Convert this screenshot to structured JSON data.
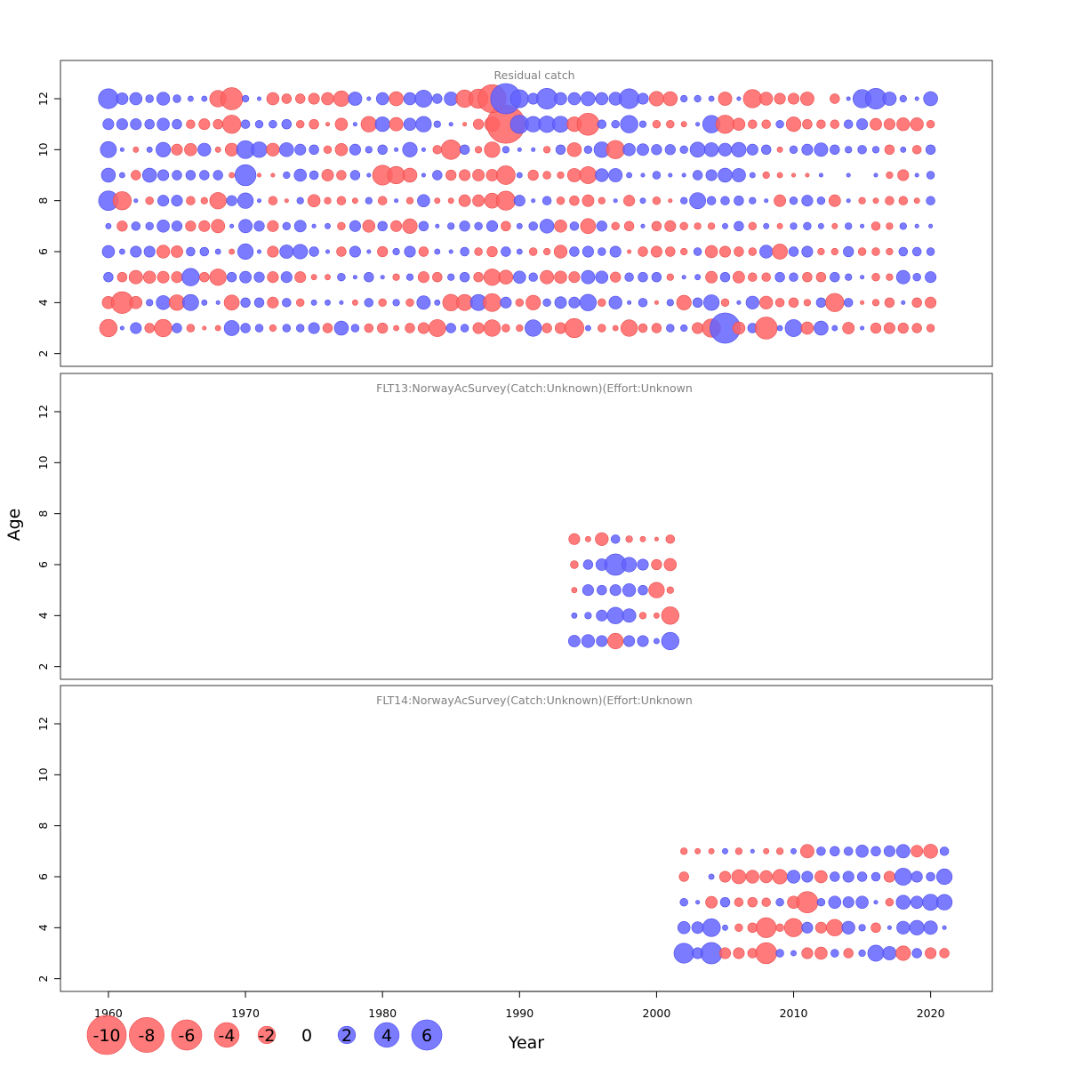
{
  "chart_data": {
    "type": "scatter",
    "subtype": "bubble-residuals",
    "xlabel": "Year",
    "ylabel": "Age",
    "xlim": [
      1956.5,
      2024.5
    ],
    "ylim": [
      1.5,
      13.5
    ],
    "x_ticks": [
      1960,
      1970,
      1980,
      1990,
      2000,
      2010,
      2020
    ],
    "y_ticks": [
      2,
      4,
      6,
      8,
      10,
      12
    ],
    "colors": {
      "negative": "#ff6464",
      "positive": "#6464ff",
      "frame": "#333333",
      "title": "#808080"
    },
    "legend": {
      "position": "bottom-left",
      "values": [
        -10,
        -8,
        -6,
        -4,
        -2,
        0,
        2,
        4,
        6
      ],
      "labels": [
        "-10",
        "-8",
        "-6",
        "-4",
        "-2",
        "0",
        "2",
        "4",
        "6"
      ]
    },
    "panels": [
      {
        "title": "Residual catch",
        "years": [
          1960,
          2021
        ],
        "ages": [
          3,
          12
        ],
        "residuals": {
          "12": [
            2.6,
            0.9,
            1.0,
            0.4,
            1.1,
            0.4,
            0.2,
            0.2,
            -1.8,
            -3.2,
            0.3,
            0.1,
            -1.0,
            -0.6,
            -0.6,
            -0.8,
            -1.0,
            -1.6,
            1.2,
            0.1,
            1.0,
            -1.3,
            1.0,
            1.9,
            0.6,
            1.2,
            -2.0,
            -2.4,
            -5.2,
            6.0,
            2.1,
            0.8,
            2.8,
            1.0,
            1.0,
            1.3,
            1.0,
            1.1,
            2.6,
            0.8,
            -1.4,
            -1.3,
            0.3,
            0.3,
            0.2,
            -1.2,
            0.1,
            -2.2,
            -1.1,
            -0.8,
            -0.8,
            -1.2,
            0.0,
            -0.6,
            0.1,
            2.2,
            2.8,
            1.2,
            0.3,
            0.1,
            1.3
          ],
          "11": [
            0.8,
            0.8,
            0.8,
            0.6,
            1.0,
            0.6,
            -0.5,
            -0.8,
            -0.6,
            -2.2,
            0.5,
            0.4,
            0.4,
            0.6,
            -0.4,
            -0.6,
            -0.1,
            -1.0,
            0.1,
            -1.6,
            1.4,
            -1.2,
            1.0,
            1.6,
            0.3,
            0.1,
            -0.1,
            -0.7,
            -1.5,
            -9.5,
            2.2,
            1.6,
            1.8,
            1.7,
            -1.4,
            -3.2,
            0.5,
            0.4,
            2.0,
            0.3,
            -0.4,
            -0.4,
            -0.2,
            0.1,
            2.0,
            -2.2,
            -1.0,
            -0.5,
            -0.5,
            0.4,
            -1.4,
            -0.6,
            -0.5,
            -0.5,
            0.5,
            0.8,
            -0.9,
            -0.8,
            -1.1,
            -1.1,
            -0.4
          ],
          "10": [
            1.7,
            0.1,
            -0.2,
            0.2,
            1.4,
            -0.8,
            -1.0,
            1.1,
            -0.2,
            -1.1,
            2.1,
            1.6,
            -1.1,
            1.3,
            0.8,
            0.6,
            -0.4,
            -1.0,
            0.8,
            0.3,
            0.6,
            0.1,
            1.4,
            0.1,
            -0.5,
            -2.5,
            0.6,
            -0.3,
            -1.6,
            0.3,
            0.1,
            0.1,
            -0.3,
            0.6,
            -1.3,
            0.4,
            1.6,
            -2.2,
            1.0,
            0.9,
            0.7,
            0.7,
            0.4,
            1.5,
            1.3,
            1.1,
            1.4,
            0.8,
            0.6,
            -0.2,
            0.4,
            0.8,
            1.2,
            0.6,
            0.3,
            0.5,
            0.3,
            -0.6,
            0.2,
            -0.5,
            0.6
          ],
          "9": [
            1.3,
            0.2,
            -0.6,
            1.3,
            0.8,
            0.6,
            0.6,
            0.6,
            0.6,
            -0.2,
            2.9,
            -0.1,
            -0.1,
            0.3,
            1.0,
            0.5,
            -0.9,
            -0.6,
            0.6,
            0.1,
            -2.6,
            -2.0,
            -1.3,
            0.1,
            0.6,
            -0.7,
            -0.8,
            -0.9,
            -0.9,
            -2.3,
            0.2,
            -0.7,
            -0.4,
            -0.3,
            -1.2,
            -1.9,
            1.1,
            1.2,
            0.2,
            0.1,
            0.4,
            0.1,
            0.1,
            0.6,
            0.8,
            1.3,
            1.2,
            0.2,
            -0.3,
            -0.2,
            -0.1,
            -0.1,
            0.1,
            0.0,
            0.1,
            0.0,
            0.1,
            -0.3,
            -0.8,
            0.1,
            0.4
          ],
          "8": [
            2.5,
            -2.2,
            0.1,
            -0.4,
            0.8,
            0.8,
            -0.5,
            -0.3,
            -1.8,
            0.7,
            1.6,
            0.1,
            -0.5,
            -0.1,
            0.3,
            -1.0,
            -0.3,
            -0.5,
            -0.2,
            0.3,
            -0.5,
            0.1,
            -0.3,
            1.0,
            -0.2,
            -0.2,
            -0.9,
            -0.9,
            -1.5,
            -2.4,
            0.8,
            0.1,
            0.5,
            -0.4,
            -0.6,
            -0.9,
            -0.3,
            0.1,
            -0.8,
            0.2,
            -0.4,
            -0.1,
            0.3,
            1.7,
            0.5,
            0.5,
            0.6,
            0.3,
            0.1,
            -0.9,
            0.4,
            0.8,
            0.4,
            -0.9,
            0.1,
            -0.3,
            -0.2,
            -0.5,
            -0.5,
            -0.2,
            0.5
          ],
          "7": [
            0.2,
            -0.7,
            0.5,
            0.4,
            1.0,
            0.7,
            -0.7,
            -0.8,
            -1.2,
            0.1,
            1.2,
            0.7,
            -0.8,
            0.4,
            0.9,
            0.1,
            0.2,
            -0.4,
            0.8,
            -1.0,
            0.6,
            -0.8,
            -1.4,
            0.6,
            0.1,
            0.3,
            0.7,
            0.4,
            0.8,
            -0.6,
            0.2,
            0.5,
            1.3,
            -1.0,
            0.5,
            -1.5,
            0.7,
            -0.4,
            -0.6,
            0.1,
            -0.6,
            -0.8,
            -0.4,
            -0.3,
            -0.3,
            0.2,
            0.6,
            -0.4,
            0.2,
            -0.2,
            0.3,
            0.4,
            0.2,
            -0.2,
            0.3,
            0.1,
            -0.5,
            -0.3,
            0.3,
            0.1,
            0.1
          ],
          "6": [
            1.0,
            0.2,
            0.8,
            0.8,
            -1.1,
            -0.9,
            0.5,
            0.5,
            0.2,
            -0.2,
            1.6,
            0.1,
            -0.8,
            1.2,
            1.4,
            0.6,
            0.1,
            -0.6,
            0.8,
            0.1,
            -0.7,
            0.3,
            0.8,
            -0.6,
            0.2,
            0.1,
            0.5,
            -0.4,
            -0.7,
            0.6,
            0.2,
            -0.4,
            -0.3,
            -1.1,
            0.6,
            0.8,
            0.4,
            0.8,
            -0.1,
            -0.6,
            -0.8,
            -0.6,
            -0.3,
            0.4,
            -1.0,
            -0.8,
            -0.6,
            -0.4,
            1.1,
            -1.5,
            0.6,
            0.8,
            -0.3,
            -0.3,
            0.7,
            -0.4,
            -0.4,
            -0.3,
            0.5,
            0.5,
            0.4
          ],
          "5": [
            0.6,
            -0.6,
            -1.2,
            -1.0,
            -0.9,
            -0.8,
            2.0,
            -0.6,
            -1.8,
            0.6,
            0.9,
            0.7,
            -0.8,
            0.8,
            -0.8,
            -0.2,
            -0.2,
            0.4,
            0.1,
            0.6,
            0.1,
            -0.3,
            0.3,
            -0.8,
            -0.6,
            0.3,
            0.6,
            -0.6,
            -1.8,
            -1.3,
            1.0,
            0.5,
            -1.2,
            -1.0,
            -0.8,
            1.2,
            1.0,
            -0.7,
            0.5,
            0.6,
            0.6,
            -0.3,
            0.1,
            0.2,
            -0.9,
            0.6,
            -0.9,
            -0.5,
            -0.5,
            0.6,
            0.5,
            -0.6,
            -0.6,
            0.6,
            0.3,
            0.1,
            -0.4,
            -0.3,
            1.2,
            0.4,
            0.8
          ],
          "4": [
            -1.0,
            -3.1,
            -1.0,
            0.3,
            1.3,
            -1.6,
            1.7,
            0.2,
            0.1,
            -1.5,
            0.6,
            0.6,
            -0.8,
            0.5,
            -0.4,
            0.2,
            0.2,
            0.1,
            -0.2,
            0.5,
            -0.4,
            0.3,
            -0.4,
            1.2,
            0.2,
            -1.8,
            -1.7,
            1.7,
            -2.1,
            0.8,
            -0.4,
            -1.4,
            0.4,
            0.9,
            0.8,
            1.8,
            -0.4,
            1.1,
            0.1,
            0.5,
            -0.1,
            0.3,
            -1.4,
            0.6,
            1.6,
            -0.4,
            0.1,
            1.1,
            -1.1,
            -0.5,
            -0.6,
            -0.3,
            0.6,
            -2.2,
            0.5,
            -0.1,
            -0.3,
            -0.6,
            0.1,
            -0.6,
            -0.8
          ],
          "3": [
            -2.0,
            0.1,
            0.8,
            -0.6,
            -2.0,
            0.6,
            -0.4,
            -0.1,
            -0.2,
            1.5,
            0.6,
            0.4,
            -0.3,
            0.4,
            0.4,
            0.8,
            -0.6,
            1.3,
            0.4,
            -0.5,
            -0.7,
            -0.2,
            -0.6,
            -0.8,
            -1.9,
            0.6,
            0.4,
            -0.8,
            -1.8,
            -0.4,
            -0.3,
            1.8,
            -0.6,
            -0.8,
            -2.4,
            0.2,
            -0.4,
            -0.2,
            -1.8,
            -0.5,
            -0.6,
            0.4,
            0.3,
            -0.8,
            -2.2,
            6.0,
            -1.0,
            0.6,
            -3.2,
            0.2,
            1.9,
            -1.0,
            1.3,
            0.2,
            -0.9,
            0.1,
            -0.7,
            -0.8,
            -0.7,
            -0.6,
            -0.4
          ]
        }
      },
      {
        "title": "FLT13:NorwayAcSurvey(Catch:Unknown)(Effort:Unknown",
        "years": [
          1994,
          2001
        ],
        "ages": [
          3,
          7
        ],
        "residuals": {
          "7": [
            -0.8,
            -0.2,
            -1.1,
            0.5,
            -0.3,
            -0.2,
            -0.1,
            -0.5
          ],
          "6": [
            -0.4,
            0.6,
            0.9,
            3.0,
            1.4,
            0.8,
            -0.7,
            -1.0
          ],
          "5": [
            -0.2,
            0.8,
            0.6,
            0.8,
            1.1,
            0.6,
            -1.6,
            -0.3
          ],
          "4": [
            0.2,
            0.3,
            0.8,
            1.8,
            1.2,
            -0.3,
            -0.2,
            -2.0
          ],
          "3": [
            0.9,
            1.1,
            0.8,
            -1.6,
            0.8,
            0.8,
            0.2,
            2.0
          ]
        }
      },
      {
        "title": "FLT14:NorwayAcSurvey(Catch:Unknown)(Effort:Unknown",
        "years": [
          2002,
          2021
        ],
        "ages": [
          3,
          7
        ],
        "residuals": {
          "7": [
            -0.3,
            -0.2,
            -0.2,
            0.2,
            -0.3,
            0.1,
            -0.2,
            -0.3,
            0.2,
            -1.2,
            0.5,
            0.6,
            0.5,
            1.0,
            0.6,
            0.8,
            1.2,
            -0.9,
            -1.3,
            0.5
          ],
          "6": [
            -0.6,
            0.0,
            0.2,
            -0.8,
            -1.3,
            -1.1,
            -1.0,
            -1.4,
            1.1,
            0.8,
            -1.0,
            0.6,
            0.8,
            0.6,
            0.5,
            -0.8,
            1.9,
            0.8,
            0.5,
            1.6
          ],
          "5": [
            0.4,
            0.1,
            -0.9,
            0.6,
            -0.5,
            -0.6,
            -0.5,
            0.4,
            -1.0,
            -3.0,
            0.4,
            1.0,
            0.8,
            1.0,
            0.1,
            -0.4,
            1.3,
            1.0,
            1.7,
            1.6
          ],
          "4": [
            1.0,
            0.9,
            2.1,
            0.2,
            -0.4,
            -0.6,
            -2.6,
            -0.4,
            -2.2,
            0.8,
            -0.8,
            -1.8,
            1.1,
            0.3,
            -0.6,
            0.1,
            1.1,
            1.4,
            1.2,
            0.1
          ],
          "3": [
            2.6,
            0.8,
            3.0,
            -0.8,
            -0.8,
            -0.6,
            -2.9,
            0.4,
            0.2,
            -0.8,
            -1.0,
            0.4,
            -0.6,
            0.3,
            1.7,
            1.2,
            -1.4,
            0.6,
            -0.8,
            -0.6
          ]
        }
      }
    ]
  }
}
